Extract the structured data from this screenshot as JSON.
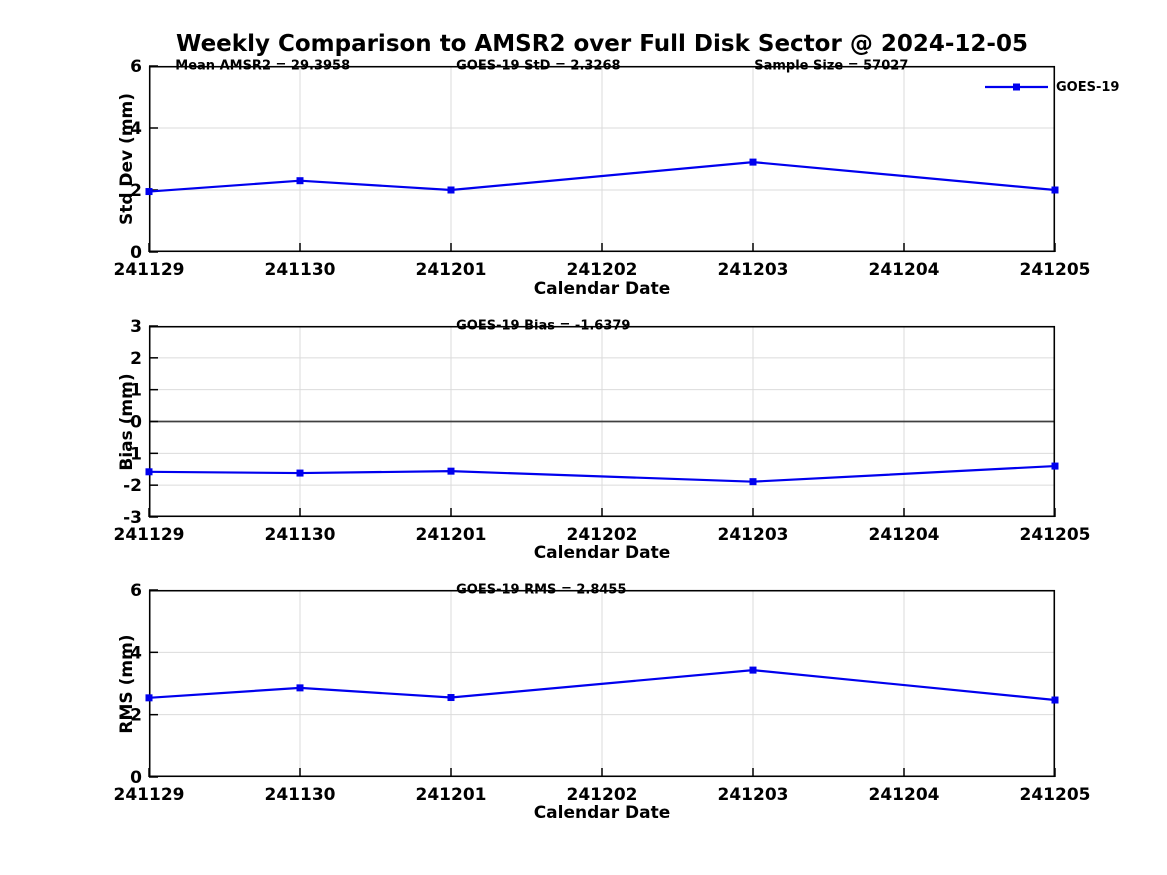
{
  "title": "Weekly Comparison to AMSR2 over Full Disk Sector @ 2024-12-05",
  "legend": {
    "label": "GOES-19"
  },
  "colors": {
    "line": "#0000EE",
    "grid": "#DBDBDB",
    "zero_line": "#404040",
    "axis": "#000000",
    "text": "#000000"
  },
  "chart_data": [
    {
      "type": "line",
      "ylabel": "Std Dev (mm)",
      "xlabel": "Calendar Date",
      "ylim": [
        0,
        6
      ],
      "yticks": [
        0,
        2,
        4,
        6
      ],
      "grid": true,
      "categories": [
        "241129",
        "241130",
        "241201",
        "241202",
        "241203",
        "241204",
        "241205"
      ],
      "series": [
        {
          "name": "GOES-19",
          "x": [
            "241129",
            "241130",
            "241201",
            "241203",
            "241205"
          ],
          "values": [
            1.95,
            2.3,
            2.0,
            2.9,
            2.0
          ]
        }
      ],
      "annotations": [
        {
          "text": "Mean AMSR2 = 29.3958",
          "fx": 0.029
        },
        {
          "text": "GOES-19 StD = 2.3268",
          "fx": 0.339
        },
        {
          "text": "Sample Size = 57027",
          "fx": 0.668
        }
      ],
      "legend_position": "top-right-outside"
    },
    {
      "type": "line",
      "ylabel": "Bias (mm)",
      "xlabel": "Calendar Date",
      "ylim": [
        -3,
        3
      ],
      "yticks": [
        -3,
        -2,
        -1,
        0,
        1,
        2,
        3
      ],
      "grid": true,
      "zero_line": true,
      "categories": [
        "241129",
        "241130",
        "241201",
        "241202",
        "241203",
        "241204",
        "241205"
      ],
      "series": [
        {
          "name": "GOES-19",
          "x": [
            "241129",
            "241130",
            "241201",
            "241203",
            "241205"
          ],
          "values": [
            -1.58,
            -1.62,
            -1.56,
            -1.89,
            -1.4
          ]
        }
      ],
      "annotations": [
        {
          "text": "GOES-19 Bias  = -1.6379",
          "fx": 0.339
        }
      ]
    },
    {
      "type": "line",
      "ylabel": "RMS (mm)",
      "xlabel": "Calendar Date",
      "ylim": [
        0,
        6
      ],
      "yticks": [
        0,
        2,
        4,
        6
      ],
      "grid": true,
      "categories": [
        "241129",
        "241130",
        "241201",
        "241202",
        "241203",
        "241204",
        "241205"
      ],
      "series": [
        {
          "name": "GOES-19",
          "x": [
            "241129",
            "241130",
            "241201",
            "241203",
            "241205"
          ],
          "values": [
            2.54,
            2.86,
            2.55,
            3.43,
            2.47
          ]
        }
      ],
      "annotations": [
        {
          "text": "GOES-19 RMS = 2.8455",
          "fx": 0.339
        }
      ]
    }
  ]
}
